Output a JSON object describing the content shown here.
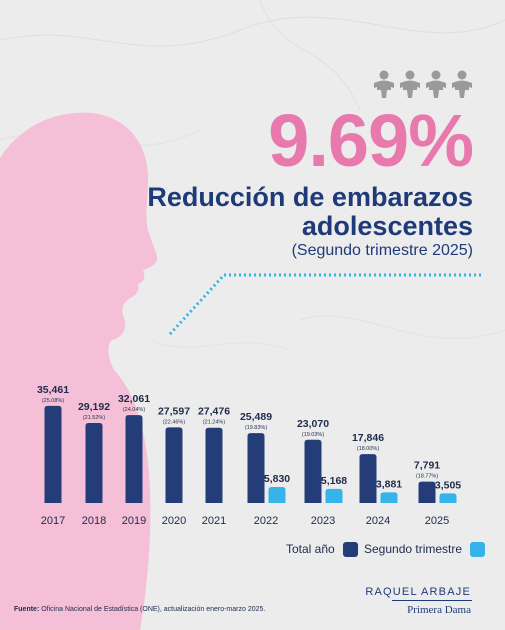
{
  "colors": {
    "pink": "#e879ad",
    "navy": "#1f3a78",
    "bar_total": "#243c78",
    "bar_q2": "#36b3ea",
    "dotted_line": "#2fb4e8",
    "silhouette": "#f4bfd7",
    "background": "#ececec"
  },
  "header": {
    "big_value": "9.69%",
    "subtitle": "Reducción de embarazos adolescentes",
    "period": "(Segundo trimestre 2025)",
    "icon": "baby-icon-row"
  },
  "legend": {
    "total_label": "Total año",
    "q2_label": "Segundo trimestre"
  },
  "branding": {
    "name": "RAQUEL ARBAJE",
    "role": "Primera Dama"
  },
  "source": {
    "label": "Fuente:",
    "text": "Oficina Nacional de Estadística (ONE), actualización enero-marzo 2025."
  },
  "chart_data": {
    "type": "bar",
    "categories": [
      "2017",
      "2018",
      "2019",
      "2020",
      "2021",
      "2022",
      "2023",
      "2024",
      "2025"
    ],
    "series": [
      {
        "name": "Total año",
        "values": [
          35461,
          29192,
          32061,
          27597,
          27476,
          25489,
          23070,
          17846,
          7791
        ],
        "value_labels": [
          "35,461",
          "29,192",
          "32,061",
          "27,597",
          "27,476",
          "25,489",
          "23,070",
          "17,846",
          "7,791"
        ],
        "pct_labels": [
          "(25.08%)",
          "(21.52%)",
          "(24.04%)",
          "(22.46%)",
          "(21.24%)",
          "(19.83%)",
          "(19.03%)",
          "(18.00%)",
          "(18.77%)"
        ]
      },
      {
        "name": "Segundo trimestre",
        "values": [
          null,
          null,
          null,
          null,
          null,
          5830,
          5168,
          3881,
          3505
        ],
        "value_labels": [
          "",
          "",
          "",
          "",
          "",
          "5,830",
          "5,168",
          "3,881",
          "3,505"
        ]
      }
    ],
    "ylim": [
      0,
      36500
    ],
    "grid": false,
    "legend_position": "bottom-right"
  }
}
